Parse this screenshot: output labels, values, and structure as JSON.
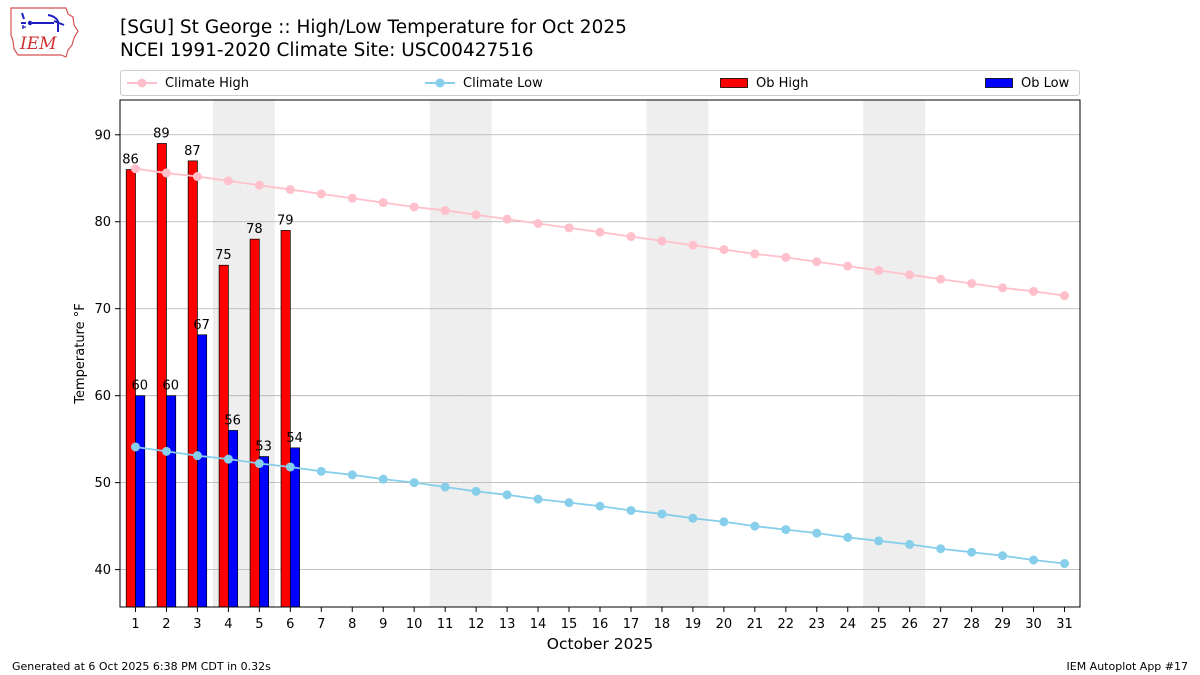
{
  "header": {
    "title_line1": "[SGU] St George :: High/Low Temperature for Oct 2025",
    "title_line2": "NCEI 1991-2020 Climate Site: USC00427516",
    "logo_text": "IEM"
  },
  "legend": {
    "climate_high": "Climate High",
    "climate_low": "Climate Low",
    "ob_high": "Ob High",
    "ob_low": "Ob Low"
  },
  "footer": {
    "left": "Generated at 6 Oct 2025 6:38 PM CDT in 0.32s",
    "right": "IEM Autoplot App #17"
  },
  "colors": {
    "climate_high": "#ffc0cb",
    "climate_low": "#87ceeb",
    "ob_high": "#ff0000",
    "ob_low": "#0000ff",
    "weekend": "#eeeeee",
    "grid": "#b0b0b0"
  },
  "chart_data": {
    "type": "bar",
    "xlabel": "October 2025",
    "ylabel": "Temperature °F",
    "xlim": [
      0.5,
      31.5
    ],
    "ylim": [
      35.7,
      94
    ],
    "x_ticks": [
      1,
      2,
      3,
      4,
      5,
      6,
      7,
      8,
      9,
      10,
      11,
      12,
      13,
      14,
      15,
      16,
      17,
      18,
      19,
      20,
      21,
      22,
      23,
      24,
      25,
      26,
      27,
      28,
      29,
      30,
      31
    ],
    "y_ticks": [
      40,
      50,
      60,
      70,
      80,
      90
    ],
    "grid": "horizontal",
    "legend_position": "top",
    "weekend_days": [
      4,
      5,
      11,
      12,
      18,
      19,
      25,
      26
    ],
    "series": [
      {
        "name": "Ob High",
        "type": "bar",
        "days": [
          1,
          2,
          3,
          4,
          5,
          6
        ],
        "values": [
          86,
          89,
          87,
          75,
          78,
          79
        ]
      },
      {
        "name": "Ob Low",
        "type": "bar",
        "days": [
          1,
          2,
          3,
          4,
          5,
          6
        ],
        "values": [
          60,
          60,
          67,
          56,
          53,
          54
        ]
      },
      {
        "name": "Climate High",
        "type": "line",
        "days": [
          1,
          2,
          3,
          4,
          5,
          6,
          7,
          8,
          9,
          10,
          11,
          12,
          13,
          14,
          15,
          16,
          17,
          18,
          19,
          20,
          21,
          22,
          23,
          24,
          25,
          26,
          27,
          28,
          29,
          30,
          31
        ],
        "values": [
          86.1,
          85.6,
          85.2,
          84.7,
          84.2,
          83.7,
          83.2,
          82.7,
          82.2,
          81.7,
          81.3,
          80.8,
          80.3,
          79.8,
          79.3,
          78.8,
          78.3,
          77.8,
          77.3,
          76.8,
          76.3,
          75.9,
          75.4,
          74.9,
          74.4,
          73.9,
          73.4,
          72.9,
          72.4,
          72.0,
          71.5
        ]
      },
      {
        "name": "Climate Low",
        "type": "line",
        "days": [
          1,
          2,
          3,
          4,
          5,
          6,
          7,
          8,
          9,
          10,
          11,
          12,
          13,
          14,
          15,
          16,
          17,
          18,
          19,
          20,
          21,
          22,
          23,
          24,
          25,
          26,
          27,
          28,
          29,
          30,
          31
        ],
        "values": [
          54.1,
          53.6,
          53.1,
          52.7,
          52.2,
          51.8,
          51.3,
          50.9,
          50.4,
          50.0,
          49.5,
          49.0,
          48.6,
          48.1,
          47.7,
          47.3,
          46.8,
          46.4,
          45.9,
          45.5,
          45.0,
          44.6,
          44.2,
          43.7,
          43.3,
          42.9,
          42.4,
          42.0,
          41.6,
          41.1,
          40.7
        ]
      }
    ]
  }
}
